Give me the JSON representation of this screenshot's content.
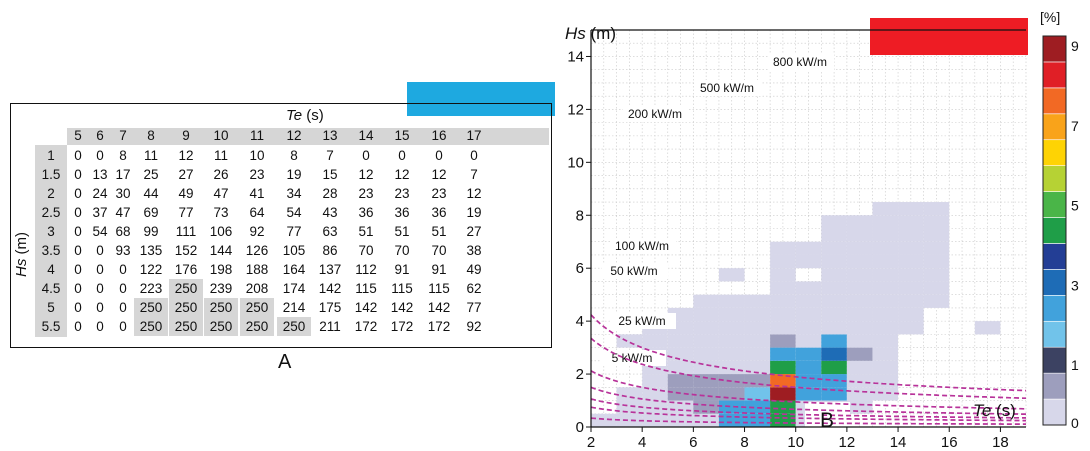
{
  "panel_a": {
    "label": "A",
    "te_title": "Te",
    "te_unit": "(s)",
    "hs_title": "Hs",
    "hs_unit": "(m)",
    "te_values": [
      "5",
      "6",
      "7",
      "8",
      "9",
      "10",
      "11",
      "12",
      "13",
      "14",
      "15",
      "16",
      "17"
    ],
    "hs_values": [
      "1",
      "1.5",
      "2",
      "2.5",
      "3",
      "3.5",
      "4",
      "4.5",
      "5",
      "5.5"
    ],
    "rows": [
      [
        "0",
        "0",
        "8",
        "11",
        "12",
        "11",
        "10",
        "8",
        "7",
        "0",
        "0",
        "0",
        "0"
      ],
      [
        "0",
        "13",
        "17",
        "25",
        "27",
        "26",
        "23",
        "19",
        "15",
        "12",
        "12",
        "12",
        "7"
      ],
      [
        "0",
        "24",
        "30",
        "44",
        "49",
        "47",
        "41",
        "34",
        "28",
        "23",
        "23",
        "23",
        "12"
      ],
      [
        "0",
        "37",
        "47",
        "69",
        "77",
        "73",
        "64",
        "54",
        "43",
        "36",
        "36",
        "36",
        "19"
      ],
      [
        "0",
        "54",
        "68",
        "99",
        "111",
        "106",
        "92",
        "77",
        "63",
        "51",
        "51",
        "51",
        "27"
      ],
      [
        "0",
        "0",
        "93",
        "135",
        "152",
        "144",
        "126",
        "105",
        "86",
        "70",
        "70",
        "70",
        "38"
      ],
      [
        "0",
        "0",
        "0",
        "122",
        "176",
        "198",
        "188",
        "164",
        "137",
        "112",
        "91",
        "91",
        "49"
      ],
      [
        "0",
        "0",
        "0",
        "223",
        "250",
        "239",
        "208",
        "174",
        "142",
        "115",
        "115",
        "115",
        "62"
      ],
      [
        "0",
        "0",
        "0",
        "250",
        "250",
        "250",
        "250",
        "214",
        "175",
        "142",
        "142",
        "142",
        "77"
      ],
      [
        "0",
        "0",
        "0",
        "250",
        "250",
        "250",
        "250",
        "250",
        "211",
        "172",
        "172",
        "172",
        "92"
      ]
    ],
    "shaded_value": "250"
  },
  "panel_b": {
    "label": "B",
    "y_title": "Hs",
    "y_unit": "(m)",
    "x_title": "Te",
    "x_unit": "(s)",
    "colorbar_unit": "[%]",
    "colorbar_ticks": [
      "0",
      "1",
      "3",
      "5",
      "7",
      "9"
    ],
    "colorbar_colors": [
      "#ffffff",
      "#d7d7ea",
      "#9d9ebd",
      "#3c4262",
      "#71c3ea",
      "#41a2dc",
      "#1e6cb6",
      "#233e95",
      "#1f9e48",
      "#4ab548",
      "#b6d234",
      "#fed304",
      "#f9a31a",
      "#f26924",
      "#e01f26",
      "#9e1d22"
    ],
    "iso_labels": [
      "800 kW/m",
      "500 kW/m",
      "200 kW/m",
      "100 kW/m",
      "50 kW/m",
      "25 kW/m",
      "5 kW/m"
    ],
    "iso_color": "#b8339a",
    "top_right_rect_color": "#ee1c24",
    "panel_a_rect_color": "#1ea9e0"
  },
  "chart_data": {
    "type": "heatmap",
    "title": "",
    "xlabel": "Te (s)",
    "ylabel": "Hs (m)",
    "xlim": [
      2,
      19
    ],
    "ylim": [
      0,
      15
    ],
    "x_ticks": [
      "2",
      "4",
      "6",
      "8",
      "10",
      "12",
      "14",
      "16",
      "18"
    ],
    "y_ticks": [
      "0",
      "2",
      "4",
      "6",
      "8",
      "10",
      "12",
      "14"
    ],
    "grid": true,
    "cell_size": [
      1,
      0.5
    ],
    "cells": [
      {
        "x": 2,
        "y": 0.5,
        "v": 0.5
      },
      {
        "x": 3,
        "y": 0.5,
        "v": 0.5
      },
      {
        "x": 4,
        "y": 0.5,
        "v": 0.5
      },
      {
        "x": 5,
        "y": 0.5,
        "v": 0.5
      },
      {
        "x": 6,
        "y": 0.5,
        "v": 0.5
      },
      {
        "x": 7,
        "y": 0.5,
        "v": 2.8
      },
      {
        "x": 8,
        "y": 0.5,
        "v": 2.8
      },
      {
        "x": 9,
        "y": 0.5,
        "v": 5.0
      },
      {
        "x": 10,
        "y": 0.5,
        "v": 0.5
      },
      {
        "x": 11,
        "y": 0.5,
        "v": 0.5
      },
      {
        "x": 3,
        "y": 1.0,
        "v": 0.5
      },
      {
        "x": 4,
        "y": 1.0,
        "v": 0.5
      },
      {
        "x": 5,
        "y": 1.0,
        "v": 0.8
      },
      {
        "x": 6,
        "y": 1.0,
        "v": 1.2
      },
      {
        "x": 7,
        "y": 1.0,
        "v": 2.8
      },
      {
        "x": 8,
        "y": 1.0,
        "v": 2.8
      },
      {
        "x": 9,
        "y": 1.0,
        "v": 4.6
      },
      {
        "x": 10,
        "y": 1.0,
        "v": 0.8
      },
      {
        "x": 11,
        "y": 1.0,
        "v": 0.5
      },
      {
        "x": 12,
        "y": 1.0,
        "v": 0.5
      },
      {
        "x": 3,
        "y": 1.5,
        "v": 0.5
      },
      {
        "x": 4,
        "y": 1.5,
        "v": 0.8
      },
      {
        "x": 5,
        "y": 1.5,
        "v": 1.2
      },
      {
        "x": 6,
        "y": 1.5,
        "v": 1.2
      },
      {
        "x": 7,
        "y": 1.5,
        "v": 1.2
      },
      {
        "x": 8,
        "y": 1.5,
        "v": 2.5
      },
      {
        "x": 9,
        "y": 1.5,
        "v": 9.0
      },
      {
        "x": 10,
        "y": 1.5,
        "v": 3.1
      },
      {
        "x": 11,
        "y": 1.5,
        "v": 3.1
      },
      {
        "x": 12,
        "y": 1.5,
        "v": 0.8
      },
      {
        "x": 13,
        "y": 1.5,
        "v": 0.5
      },
      {
        "x": 4,
        "y": 2.0,
        "v": 0.5
      },
      {
        "x": 5,
        "y": 2.0,
        "v": 1.2
      },
      {
        "x": 6,
        "y": 2.0,
        "v": 1.2
      },
      {
        "x": 7,
        "y": 2.0,
        "v": 1.2
      },
      {
        "x": 8,
        "y": 2.0,
        "v": 1.2
      },
      {
        "x": 9,
        "y": 2.0,
        "v": 8.0
      },
      {
        "x": 10,
        "y": 2.0,
        "v": 3.1
      },
      {
        "x": 11,
        "y": 2.0,
        "v": 3.1
      },
      {
        "x": 12,
        "y": 2.0,
        "v": 0.5
      },
      {
        "x": 13,
        "y": 2.0,
        "v": 0.5
      },
      {
        "x": 4,
        "y": 2.5,
        "v": 0.5
      },
      {
        "x": 5,
        "y": 2.5,
        "v": 0.5
      },
      {
        "x": 6,
        "y": 2.5,
        "v": 0.8
      },
      {
        "x": 7,
        "y": 2.5,
        "v": 0.8
      },
      {
        "x": 8,
        "y": 2.5,
        "v": 0.8
      },
      {
        "x": 9,
        "y": 2.5,
        "v": 5.0
      },
      {
        "x": 10,
        "y": 2.5,
        "v": 2.8
      },
      {
        "x": 11,
        "y": 2.5,
        "v": 4.6
      },
      {
        "x": 12,
        "y": 2.5,
        "v": 0.5
      },
      {
        "x": 13,
        "y": 2.5,
        "v": 0.5
      },
      {
        "x": 4,
        "y": 3.0,
        "v": 0.5
      },
      {
        "x": 5,
        "y": 3.0,
        "v": 0.5
      },
      {
        "x": 6,
        "y": 3.0,
        "v": 0.5
      },
      {
        "x": 7,
        "y": 3.0,
        "v": 0.5
      },
      {
        "x": 8,
        "y": 3.0,
        "v": 0.5
      },
      {
        "x": 9,
        "y": 3.0,
        "v": 2.8
      },
      {
        "x": 10,
        "y": 3.0,
        "v": 2.8
      },
      {
        "x": 11,
        "y": 3.0,
        "v": 3.5
      },
      {
        "x": 12,
        "y": 3.0,
        "v": 1.2
      },
      {
        "x": 13,
        "y": 3.0,
        "v": 0.5
      },
      {
        "x": 3,
        "y": 3.5,
        "v": 0.5
      },
      {
        "x": 4,
        "y": 3.5,
        "v": 0.5
      },
      {
        "x": 5,
        "y": 3.5,
        "v": 0.5
      },
      {
        "x": 6,
        "y": 3.5,
        "v": 0.5
      },
      {
        "x": 7,
        "y": 3.5,
        "v": 0.5
      },
      {
        "x": 8,
        "y": 3.5,
        "v": 0.5
      },
      {
        "x": 9,
        "y": 3.5,
        "v": 1.2
      },
      {
        "x": 10,
        "y": 3.5,
        "v": 0.5
      },
      {
        "x": 11,
        "y": 3.5,
        "v": 2.8
      },
      {
        "x": 12,
        "y": 3.5,
        "v": 0.5
      },
      {
        "x": 13,
        "y": 3.5,
        "v": 0.5
      },
      {
        "x": 4,
        "y": 4.0,
        "v": 0.5
      },
      {
        "x": 5,
        "y": 4.0,
        "v": 0.5
      },
      {
        "x": 6,
        "y": 4.0,
        "v": 0.5
      },
      {
        "x": 7,
        "y": 4.0,
        "v": 0.5
      },
      {
        "x": 8,
        "y": 4.0,
        "v": 0.5
      },
      {
        "x": 9,
        "y": 4.0,
        "v": 0.8
      },
      {
        "x": 10,
        "y": 4.0,
        "v": 0.5
      },
      {
        "x": 11,
        "y": 4.0,
        "v": 0.8
      },
      {
        "x": 12,
        "y": 4.0,
        "v": 0.8
      },
      {
        "x": 13,
        "y": 4.0,
        "v": 0.8
      },
      {
        "x": 14,
        "y": 4.0,
        "v": 0.5
      },
      {
        "x": 17,
        "y": 4.0,
        "v": 0.5
      },
      {
        "x": 5,
        "y": 4.5,
        "v": 0.5
      },
      {
        "x": 6,
        "y": 4.5,
        "v": 0.5
      },
      {
        "x": 7,
        "y": 4.5,
        "v": 0.5
      },
      {
        "x": 8,
        "y": 4.5,
        "v": 0.5
      },
      {
        "x": 9,
        "y": 4.5,
        "v": 0.5
      },
      {
        "x": 10,
        "y": 4.5,
        "v": 0.5
      },
      {
        "x": 11,
        "y": 4.5,
        "v": 0.5
      },
      {
        "x": 12,
        "y": 4.5,
        "v": 0.5
      },
      {
        "x": 13,
        "y": 4.5,
        "v": 0.5
      },
      {
        "x": 14,
        "y": 4.5,
        "v": 0.5
      },
      {
        "x": 6,
        "y": 5.0,
        "v": 0.5
      },
      {
        "x": 7,
        "y": 5.0,
        "v": 0.5
      },
      {
        "x": 8,
        "y": 5.0,
        "v": 0.5
      },
      {
        "x": 9,
        "y": 5.0,
        "v": 0.5
      },
      {
        "x": 10,
        "y": 5.0,
        "v": 0.5
      },
      {
        "x": 11,
        "y": 5.0,
        "v": 0.5
      },
      {
        "x": 12,
        "y": 5.0,
        "v": 0.5
      },
      {
        "x": 13,
        "y": 5.0,
        "v": 0.5
      },
      {
        "x": 14,
        "y": 5.0,
        "v": 0.5
      },
      {
        "x": 15,
        "y": 5.0,
        "v": 0.5
      },
      {
        "x": 9,
        "y": 5.5,
        "v": 0.5
      },
      {
        "x": 10,
        "y": 5.5,
        "v": 0.5
      },
      {
        "x": 11,
        "y": 5.5,
        "v": 0.5
      },
      {
        "x": 12,
        "y": 5.5,
        "v": 0.5
      },
      {
        "x": 13,
        "y": 5.5,
        "v": 0.5
      },
      {
        "x": 14,
        "y": 5.5,
        "v": 0.5
      },
      {
        "x": 15,
        "y": 5.5,
        "v": 0.5
      },
      {
        "x": 7,
        "y": 6.0,
        "v": 0.5
      },
      {
        "x": 9,
        "y": 6.0,
        "v": 0.5
      },
      {
        "x": 11,
        "y": 6.0,
        "v": 0.5
      },
      {
        "x": 12,
        "y": 6.0,
        "v": 0.5
      },
      {
        "x": 13,
        "y": 6.0,
        "v": 0.5
      },
      {
        "x": 14,
        "y": 6.0,
        "v": 0.5
      },
      {
        "x": 15,
        "y": 6.0,
        "v": 0.5
      },
      {
        "x": 9,
        "y": 6.5,
        "v": 0.5
      },
      {
        "x": 10,
        "y": 6.5,
        "v": 0.5
      },
      {
        "x": 11,
        "y": 6.5,
        "v": 0.5
      },
      {
        "x": 12,
        "y": 6.5,
        "v": 0.5
      },
      {
        "x": 13,
        "y": 6.5,
        "v": 0.5
      },
      {
        "x": 14,
        "y": 6.5,
        "v": 0.5
      },
      {
        "x": 15,
        "y": 6.5,
        "v": 0.5
      },
      {
        "x": 9,
        "y": 7.0,
        "v": 0.5
      },
      {
        "x": 10,
        "y": 7.0,
        "v": 0.5
      },
      {
        "x": 11,
        "y": 7.0,
        "v": 0.5
      },
      {
        "x": 12,
        "y": 7.0,
        "v": 0.5
      },
      {
        "x": 13,
        "y": 7.0,
        "v": 0.5
      },
      {
        "x": 14,
        "y": 7.0,
        "v": 0.5
      },
      {
        "x": 15,
        "y": 7.0,
        "v": 0.5
      },
      {
        "x": 11,
        "y": 7.5,
        "v": 0.5
      },
      {
        "x": 12,
        "y": 7.5,
        "v": 0.5
      },
      {
        "x": 13,
        "y": 7.5,
        "v": 0.5
      },
      {
        "x": 14,
        "y": 7.5,
        "v": 0.5
      },
      {
        "x": 15,
        "y": 7.5,
        "v": 0.5
      },
      {
        "x": 11,
        "y": 8.0,
        "v": 0.5
      },
      {
        "x": 12,
        "y": 8.0,
        "v": 0.5
      },
      {
        "x": 13,
        "y": 8.0,
        "v": 0.5
      },
      {
        "x": 14,
        "y": 8.0,
        "v": 0.5
      },
      {
        "x": 15,
        "y": 8.0,
        "v": 0.5
      },
      {
        "x": 13,
        "y": 8.5,
        "v": 0.5
      },
      {
        "x": 14,
        "y": 8.5,
        "v": 0.5
      },
      {
        "x": 15,
        "y": 8.5,
        "v": 0.5
      }
    ],
    "iso_power_curves": [
      {
        "name": "5 kW/m"
      },
      {
        "name": "25 kW/m"
      },
      {
        "name": "50 kW/m"
      },
      {
        "name": "100 kW/m"
      },
      {
        "name": "200 kW/m"
      },
      {
        "name": "500 kW/m"
      },
      {
        "name": "800 kW/m"
      }
    ]
  }
}
